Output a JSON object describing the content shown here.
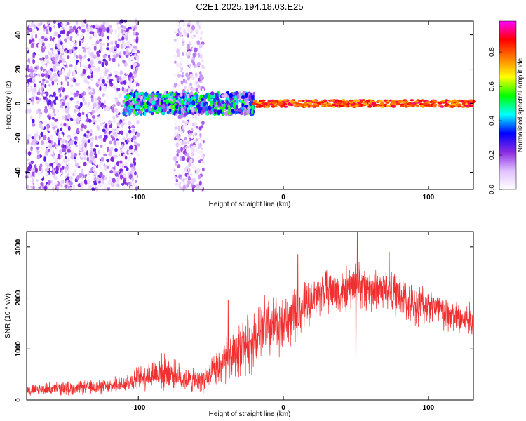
{
  "chart_data": [
    {
      "type": "heatmap",
      "title": "C2E1.2025.194.18.03.E25",
      "xlabel": "Height of straight line (km)",
      "ylabel": "Frequency (Hz)",
      "xlim": [
        -177,
        131
      ],
      "ylim": [
        -50,
        48
      ],
      "xticks": [
        -100,
        0,
        100
      ],
      "yticks": [
        -40,
        -20,
        0,
        20,
        40
      ],
      "colorbar": {
        "label": "Normalized spectral amplitude",
        "range": [
          0,
          0.98
        ],
        "ticks": [
          0.0,
          0.2,
          0.4,
          0.6,
          0.8
        ],
        "tick_labels": [
          "0.0",
          "0.2",
          "0.4",
          "0.6",
          "0.8"
        ],
        "colors": [
          "#ffffff",
          "#e0c0ff",
          "#8a2be2",
          "#0000ff",
          "#00ffff",
          "#00ff00",
          "#ffff00",
          "#ff8000",
          "#ff0000",
          "#ff00ff"
        ]
      },
      "features": [
        {
          "x_range": [
            -177,
            -100
          ],
          "freq_range": [
            -50,
            48
          ],
          "amplitude": 0.15,
          "pattern": "broadband scatter"
        },
        {
          "x_range": [
            -75,
            -55
          ],
          "freq_range": [
            -50,
            48
          ],
          "amplitude": 0.12,
          "pattern": "broadband scatter"
        },
        {
          "x_range": [
            -110,
            -20
          ],
          "freq_range": [
            -6,
            6
          ],
          "amplitude": 0.35,
          "pattern": "noisy band"
        },
        {
          "x_range": [
            -20,
            131
          ],
          "freq_range": [
            -2,
            2
          ],
          "amplitude": 0.9,
          "pattern": "narrow band at 0 Hz"
        }
      ]
    },
    {
      "type": "line",
      "title": "",
      "xlabel": "Height of straight line (km)",
      "ylabel": "SNR (10 * v/v)",
      "xlim": [
        -177,
        131
      ],
      "ylim": [
        0,
        3300
      ],
      "xticks": [
        -100,
        0,
        100
      ],
      "yticks": [
        0,
        1000,
        2000,
        3000
      ],
      "color": "#f03030",
      "series": [
        {
          "name": "",
          "x": [
            -177,
            -160,
            -140,
            -120,
            -110,
            -100,
            -90,
            -80,
            -70,
            -60,
            -50,
            -40,
            -30,
            -20,
            -10,
            0,
            10,
            20,
            30,
            40,
            50,
            60,
            70,
            80,
            90,
            100,
            110,
            120,
            131
          ],
          "mean": [
            190,
            220,
            240,
            260,
            330,
            420,
            520,
            560,
            420,
            360,
            470,
            750,
            1000,
            1200,
            1400,
            1480,
            1700,
            2000,
            2150,
            2100,
            2250,
            2150,
            2200,
            2050,
            1850,
            1900,
            1700,
            1600,
            1550
          ],
          "spread": [
            130,
            150,
            160,
            170,
            200,
            280,
            380,
            420,
            300,
            260,
            350,
            550,
            650,
            700,
            750,
            650,
            600,
            500,
            500,
            500,
            550,
            500,
            500,
            500,
            450,
            450,
            450,
            400,
            400
          ],
          "spikes": [
            [
              51,
              3280
            ],
            [
              50,
              760
            ],
            [
              -38,
              1950
            ],
            [
              -13,
              2050
            ],
            [
              10,
              2850
            ],
            [
              73,
              2900
            ]
          ]
        }
      ]
    }
  ]
}
